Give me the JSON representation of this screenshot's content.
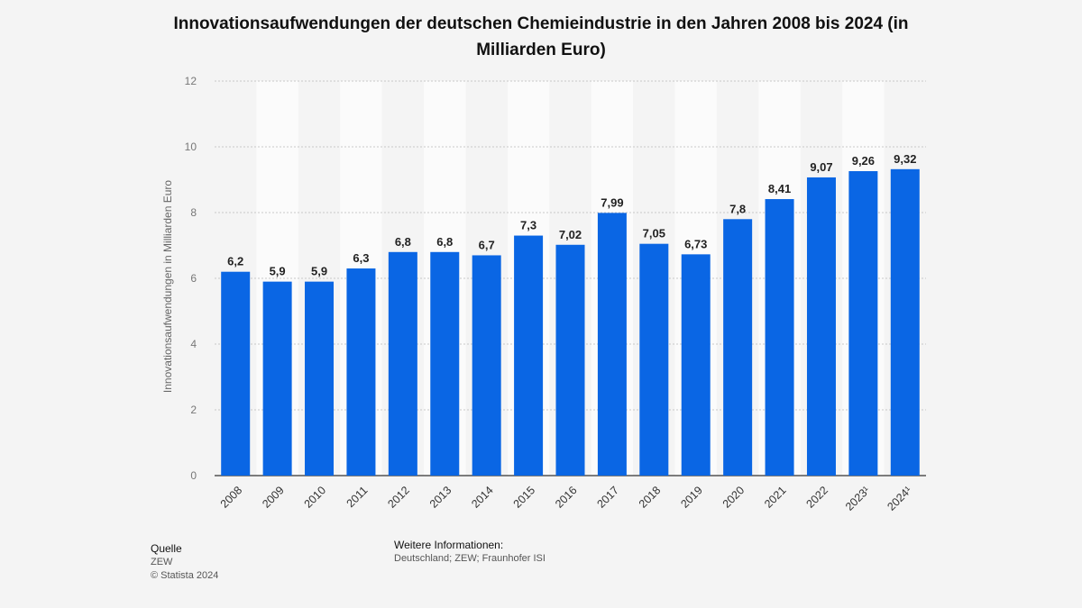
{
  "chart_data": {
    "type": "bar",
    "title": "Innovationsaufwendungen der deutschen Chemieindustrie in den Jahren 2008 bis 2024 (in Milliarden Euro)",
    "ylabel": "Innovationsaufwendungen in Milliarden Euro",
    "xlabel": "",
    "categories": [
      "2008",
      "2009",
      "2010",
      "2011",
      "2012",
      "2013",
      "2014",
      "2015",
      "2016",
      "2017",
      "2018",
      "2019",
      "2020",
      "2021",
      "2022",
      "2023¹",
      "2024¹"
    ],
    "values": [
      6.2,
      5.9,
      5.9,
      6.3,
      6.8,
      6.8,
      6.7,
      7.3,
      7.02,
      7.99,
      7.05,
      6.73,
      7.8,
      8.41,
      9.07,
      9.26,
      9.32
    ],
    "value_labels": [
      "6,2",
      "5,9",
      "5,9",
      "6,3",
      "6,8",
      "6,8",
      "6,7",
      "7,3",
      "7,02",
      "7,99",
      "7,05",
      "6,73",
      "7,8",
      "8,41",
      "9,07",
      "9,26",
      "9,32"
    ],
    "ylim": [
      0,
      12
    ],
    "yticks": [
      0,
      2,
      4,
      6,
      8,
      10,
      12
    ],
    "grid": true,
    "bar_color": "#0a66e4"
  },
  "footer": {
    "source_heading": "Quelle",
    "source": "ZEW",
    "copyright": "© Statista 2024",
    "info_heading": "Weitere Informationen:",
    "info": "Deutschland; ZEW; Fraunhofer ISI"
  }
}
